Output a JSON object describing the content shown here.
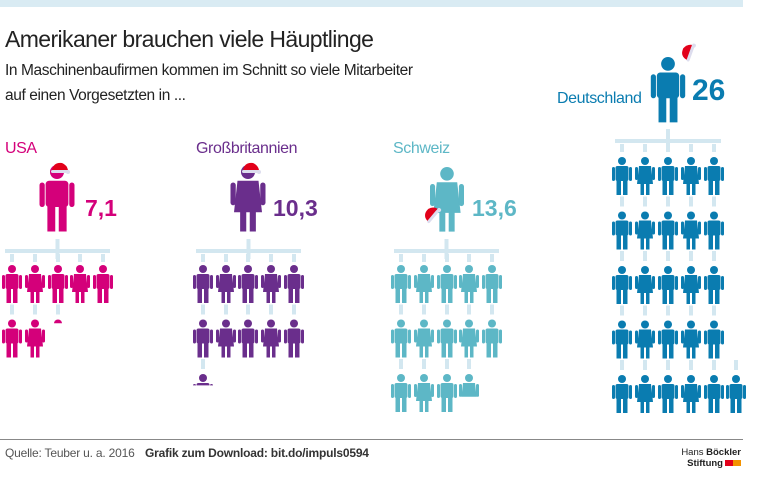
{
  "title": "Amerikaner brauchen viele Häuptlinge",
  "subtitle": [
    "In Maschinenbaufirmen kommen im Schnitt so viele Mitarbeiter",
    "auf einen Vorgesetzten in ..."
  ],
  "chart_data": {
    "type": "pictogram",
    "unit": "Mitarbeiter je Vorgesetzten",
    "series": [
      {
        "name": "USA",
        "value": 7.1,
        "label": "7,1",
        "color": "#d4007a",
        "hat": "on-head"
      },
      {
        "name": "Großbritannien",
        "value": 10.3,
        "label": "10,3",
        "color": "#6a2e8c",
        "hat": "on-head"
      },
      {
        "name": "Schweiz",
        "value": 13.6,
        "label": "13,6",
        "color": "#5db7c6",
        "hat": "in-hand"
      },
      {
        "name": "Deutschland",
        "value": 26,
        "label": "26",
        "color": "#0a7cb0",
        "hat": "raised"
      }
    ],
    "hat_color": "#e2001a",
    "connector_color": "#d3e7f0"
  },
  "footer": {
    "source": "Quelle: Teuber u. a. 2016",
    "download": "Grafik zum Download: bit.do/impuls0594"
  },
  "logo": {
    "line1_a": "Hans",
    "line1_b": "Böckler",
    "line2": "Stiftung"
  }
}
